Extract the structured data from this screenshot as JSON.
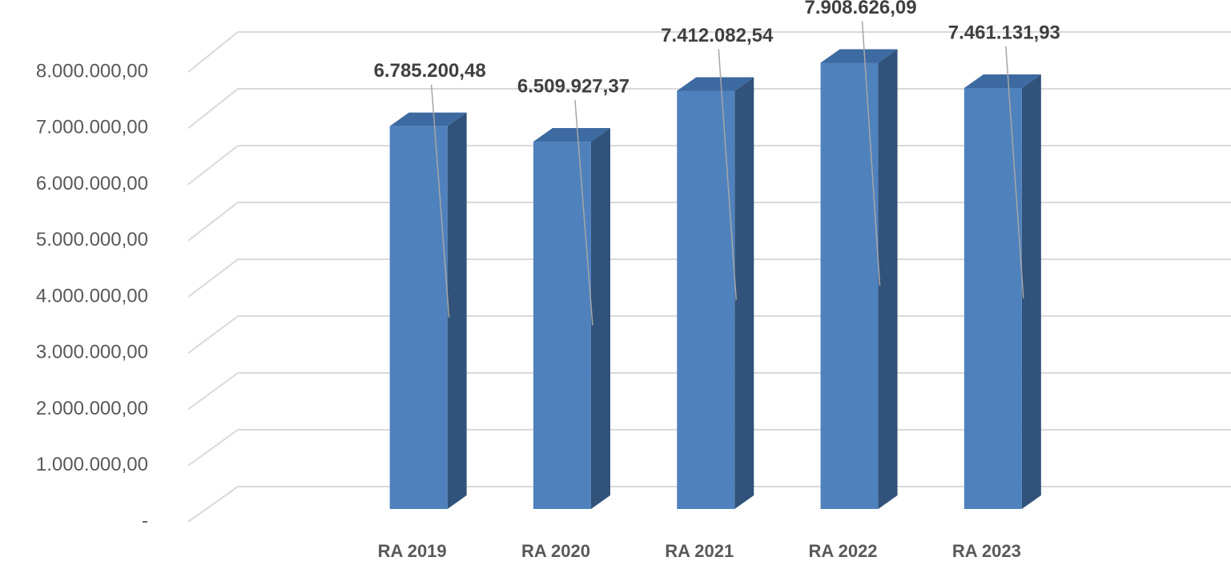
{
  "chart_data": {
    "type": "bar3d",
    "categories": [
      "RA 2019",
      "RA 2020",
      "RA 2021",
      "RA 2022",
      "RA 2023"
    ],
    "values": [
      6785200.48,
      6509927.37,
      7412082.54,
      7908626.09,
      7461131.93
    ],
    "value_labels": [
      "6.785.200,48",
      "6.509.927,37",
      "7.412.082,54",
      "7.908.626,09",
      "7.461.131,93"
    ],
    "color": "#4f81bd",
    "ylim": [
      0,
      8000000
    ],
    "yticks": [
      {
        "value": 0,
        "label": "-"
      },
      {
        "value": 1000000,
        "label": "1.000.000,00"
      },
      {
        "value": 2000000,
        "label": "2.000.000,00"
      },
      {
        "value": 3000000,
        "label": "3.000.000,00"
      },
      {
        "value": 4000000,
        "label": "4.000.000,00"
      },
      {
        "value": 5000000,
        "label": "5.000.000,00"
      },
      {
        "value": 6000000,
        "label": "6.000.000,00"
      },
      {
        "value": 7000000,
        "label": "7.000.000,00"
      },
      {
        "value": 8000000,
        "label": "8.000.000,00"
      }
    ],
    "grid": true
  }
}
